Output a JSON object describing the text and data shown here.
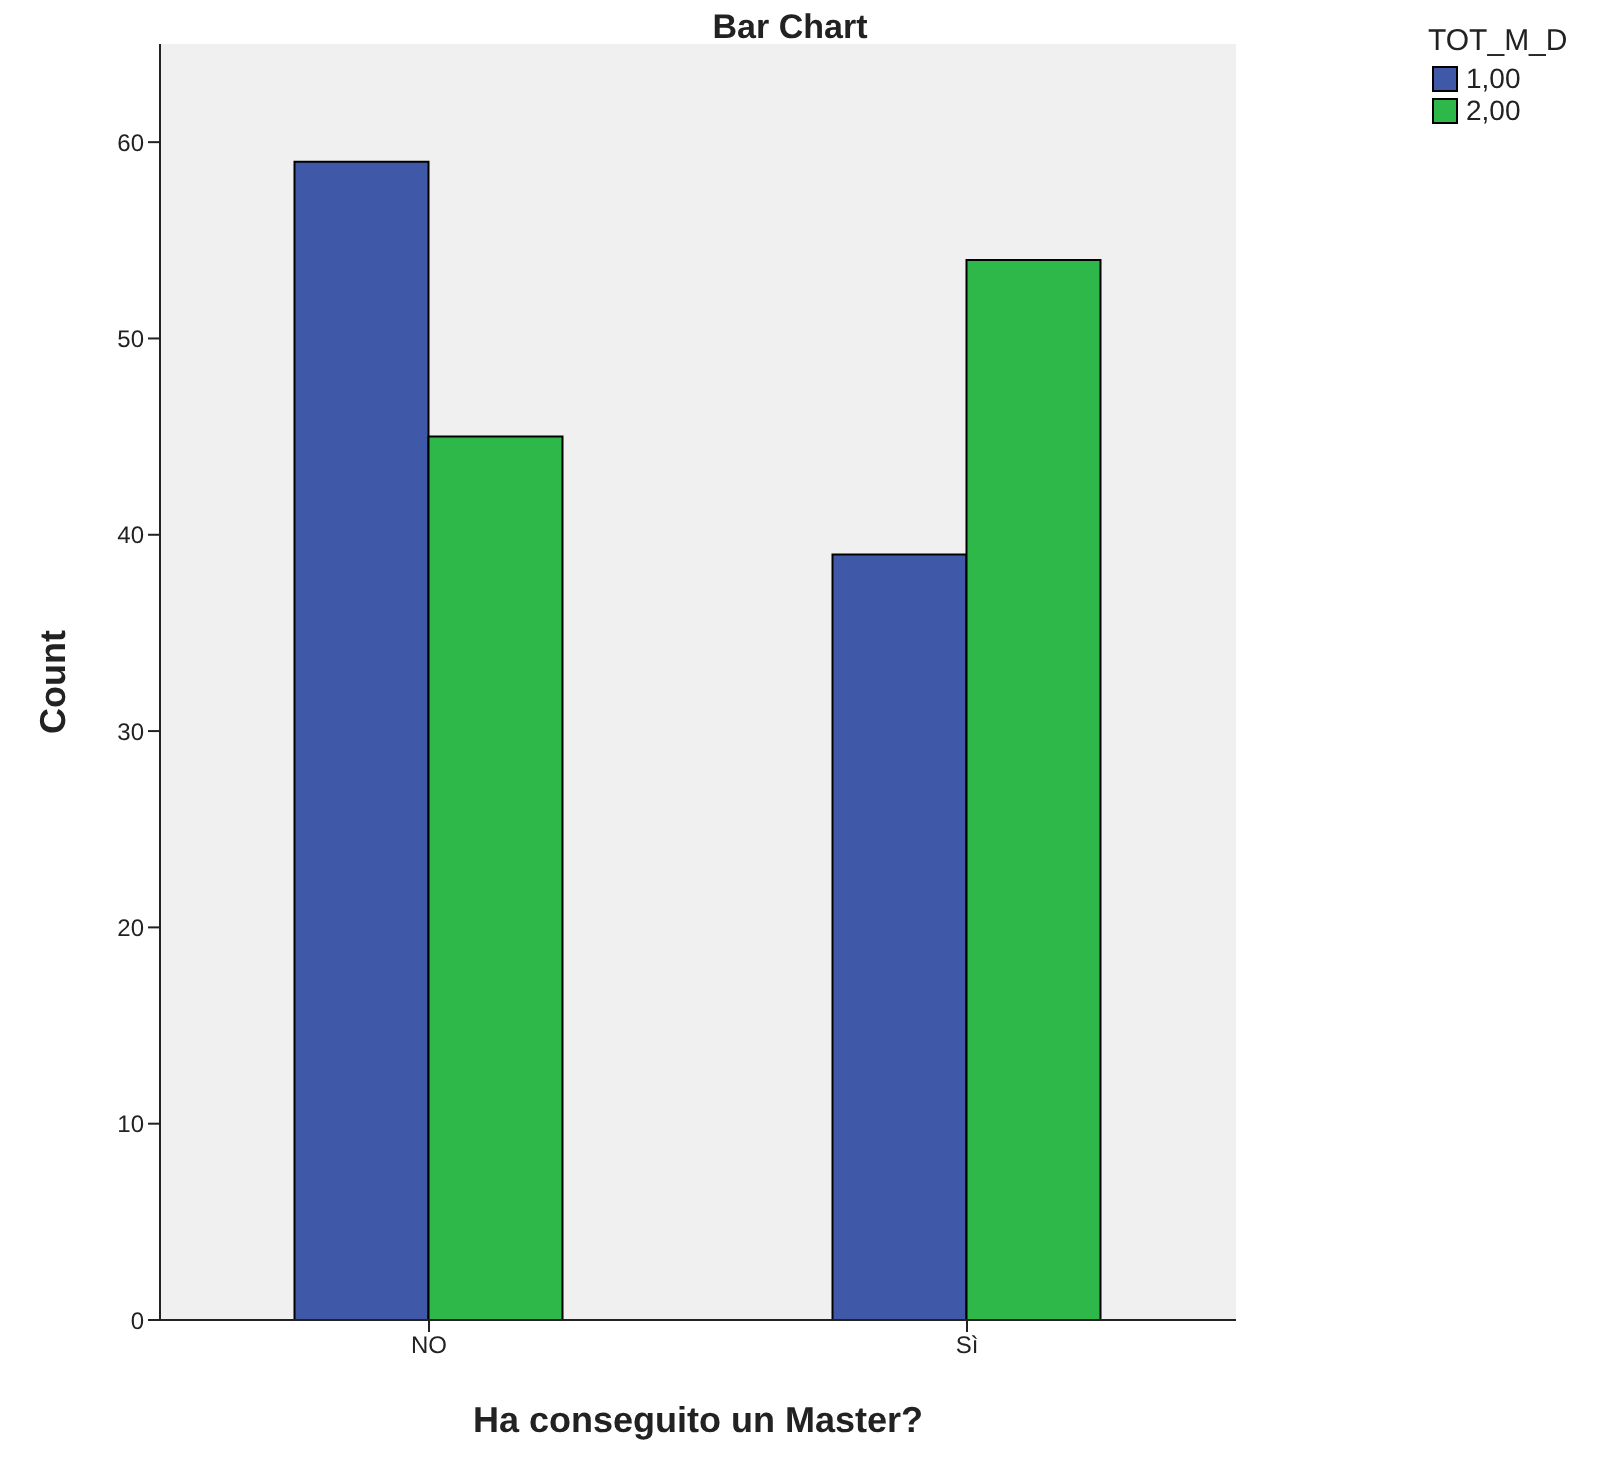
{
  "chart_data": {
    "type": "bar",
    "title": "Bar Chart",
    "xlabel": "Ha conseguito un Master?",
    "ylabel": "Count",
    "legend_title": "TOT_M_D",
    "categories": [
      "NO",
      "Sì"
    ],
    "series": [
      {
        "name": "1,00",
        "color": "#3f58a8",
        "values": [
          59,
          39
        ]
      },
      {
        "name": "2,00",
        "color": "#2eb84a",
        "values": [
          45,
          54
        ]
      }
    ],
    "ylim": [
      0,
      65
    ],
    "yticks": [
      0,
      10,
      20,
      30,
      40,
      50,
      60
    ],
    "legend": "top right"
  }
}
